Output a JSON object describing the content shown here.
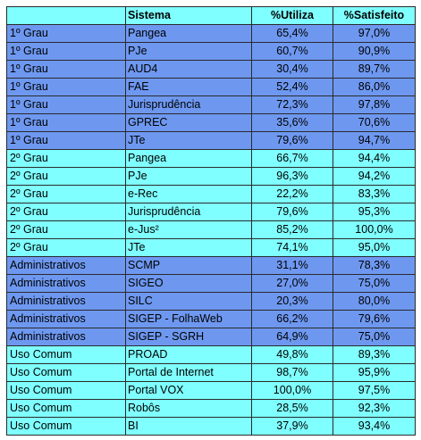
{
  "colors": {
    "header_bg": "#7FFFFF",
    "row_blue": "#6E98F0",
    "row_cyan": "#7FFFFF",
    "border": "#2a2a2a"
  },
  "table": {
    "headers": [
      "",
      "Sistema",
      "%Utiliza",
      "%Satisfeito"
    ],
    "rows": [
      {
        "cat": "1º Grau",
        "sys": "Pangea",
        "util": "65,4%",
        "sat": "97,0%",
        "tone": "blue"
      },
      {
        "cat": "1º Grau",
        "sys": " PJe",
        "util": "60,7%",
        "sat": "90,9%",
        "tone": "blue"
      },
      {
        "cat": "1º Grau",
        "sys": "AUD4",
        "util": "30,4%",
        "sat": "89,7%",
        "tone": "blue"
      },
      {
        "cat": "1º Grau",
        "sys": "FAE",
        "util": "52,4%",
        "sat": "86,0%",
        "tone": "blue"
      },
      {
        "cat": "1º Grau",
        "sys": "Jurisprudência",
        "util": "72,3%",
        "sat": "97,8%",
        "tone": "blue"
      },
      {
        "cat": "1º Grau",
        "sys": "GPREC",
        "util": "35,6%",
        "sat": "70,6%",
        "tone": "blue"
      },
      {
        "cat": "1º Grau",
        "sys": "JTe",
        "util": "79,6%",
        "sat": "94,7%",
        "tone": "blue"
      },
      {
        "cat": "2º Grau",
        "sys": "Pangea",
        "util": "66,7%",
        "sat": "94,4%",
        "tone": "cyan"
      },
      {
        "cat": "2º Grau",
        "sys": " PJe",
        "util": "96,3%",
        "sat": "94,2%",
        "tone": "cyan"
      },
      {
        "cat": "2º Grau",
        "sys": " e-Rec",
        "util": "22,2%",
        "sat": "83,3%",
        "tone": "cyan"
      },
      {
        "cat": "2º Grau",
        "sys": "Jurisprudência",
        "util": "79,6%",
        "sat": "95,3%",
        "tone": "cyan"
      },
      {
        "cat": "2º Grau",
        "sys": "e-Jus²",
        "util": "85,2%",
        "sat": "100,0%",
        "tone": "cyan"
      },
      {
        "cat": "2º Grau",
        "sys": " JTe",
        "util": "74,1%",
        "sat": "95,0%",
        "tone": "cyan"
      },
      {
        "cat": "Administrativos",
        "sys": "SCMP",
        "util": "31,1%",
        "sat": "78,3%",
        "tone": "blue"
      },
      {
        "cat": "Administrativos",
        "sys": "SIGEO",
        "util": "27,0%",
        "sat": "75,0%",
        "tone": "blue"
      },
      {
        "cat": "Administrativos",
        "sys": "SILC",
        "util": "20,3%",
        "sat": "80,0%",
        "tone": "blue"
      },
      {
        "cat": "Administrativos",
        "sys": "SIGEP - FolhaWeb",
        "util": "66,2%",
        "sat": "79,6%",
        "tone": "blue"
      },
      {
        "cat": "Administrativos",
        "sys": "SIGEP - SGRH",
        "util": "64,9%",
        "sat": "75,0%",
        "tone": "blue"
      },
      {
        "cat": "Uso Comum",
        "sys": "PROAD",
        "util": "49,8%",
        "sat": "89,3%",
        "tone": "cyan"
      },
      {
        "cat": "Uso Comum",
        "sys": "Portal de Internet",
        "util": "98,7%",
        "sat": "95,9%",
        "tone": "cyan"
      },
      {
        "cat": "Uso Comum",
        "sys": "Portal VOX",
        "util": "100,0%",
        "sat": "97,5%",
        "tone": "cyan"
      },
      {
        "cat": "Uso Comum",
        "sys": "Robôs",
        "util": "28,5%",
        "sat": "92,3%",
        "tone": "cyan"
      },
      {
        "cat": "Uso Comum",
        "sys": "BI",
        "util": "37,9%",
        "sat": "93,4%",
        "tone": "cyan"
      }
    ]
  }
}
